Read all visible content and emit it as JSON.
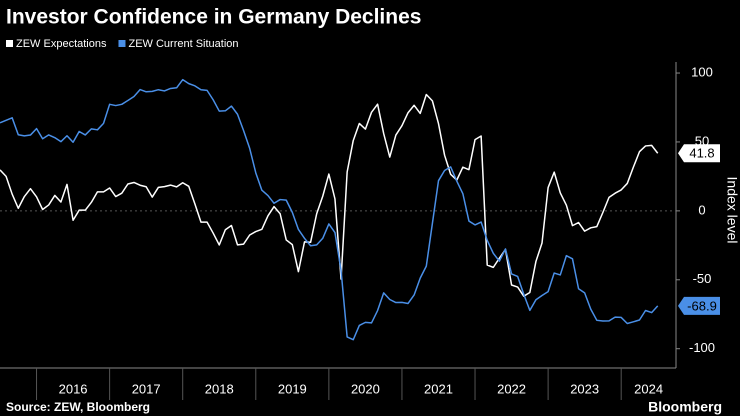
{
  "chart_data": {
    "type": "line",
    "title": "Investor Confidence in Germany Declines",
    "y_label": "Index level",
    "source": "Source: ZEW, Bloomberg",
    "brand": "Bloomberg",
    "x": [
      "2015-07",
      "2015-08",
      "2015-09",
      "2015-10",
      "2015-11",
      "2015-12",
      "2016-01",
      "2016-02",
      "2016-03",
      "2016-04",
      "2016-05",
      "2016-06",
      "2016-07",
      "2016-08",
      "2016-09",
      "2016-10",
      "2016-11",
      "2016-12",
      "2017-01",
      "2017-02",
      "2017-03",
      "2017-04",
      "2017-05",
      "2017-06",
      "2017-07",
      "2017-08",
      "2017-09",
      "2017-10",
      "2017-11",
      "2017-12",
      "2018-01",
      "2018-02",
      "2018-03",
      "2018-04",
      "2018-05",
      "2018-06",
      "2018-07",
      "2018-08",
      "2018-09",
      "2018-10",
      "2018-11",
      "2018-12",
      "2019-01",
      "2019-02",
      "2019-03",
      "2019-04",
      "2019-05",
      "2019-06",
      "2019-07",
      "2019-08",
      "2019-09",
      "2019-10",
      "2019-11",
      "2019-12",
      "2020-01",
      "2020-02",
      "2020-03",
      "2020-04",
      "2020-05",
      "2020-06",
      "2020-07",
      "2020-08",
      "2020-09",
      "2020-10",
      "2020-11",
      "2020-12",
      "2021-01",
      "2021-02",
      "2021-03",
      "2021-04",
      "2021-05",
      "2021-06",
      "2021-07",
      "2021-08",
      "2021-09",
      "2021-10",
      "2021-11",
      "2021-12",
      "2022-01",
      "2022-02",
      "2022-03",
      "2022-04",
      "2022-05",
      "2022-06",
      "2022-07",
      "2022-08",
      "2022-09",
      "2022-10",
      "2022-11",
      "2022-12",
      "2023-01",
      "2023-02",
      "2023-03",
      "2023-04",
      "2023-05",
      "2023-06",
      "2023-07",
      "2023-08",
      "2023-09",
      "2023-10",
      "2023-11",
      "2023-12",
      "2024-01",
      "2024-02",
      "2024-03",
      "2024-04",
      "2024-05",
      "2024-06",
      "2024-07"
    ],
    "series": [
      {
        "name": "ZEW Expectations",
        "color": "#ffffff",
        "values": [
          29.7,
          25.0,
          12.1,
          1.9,
          10.4,
          16.1,
          10.2,
          1.0,
          4.3,
          11.2,
          6.4,
          19.2,
          -6.8,
          0.5,
          0.5,
          6.2,
          13.8,
          13.8,
          16.6,
          10.4,
          12.8,
          19.5,
          20.6,
          18.6,
          17.5,
          10.0,
          17.0,
          17.6,
          18.7,
          17.4,
          20.4,
          17.8,
          5.1,
          -8.2,
          -8.2,
          -16.1,
          -24.7,
          -13.7,
          -10.6,
          -24.7,
          -24.1,
          -17.5,
          -15.0,
          -13.4,
          -3.6,
          3.1,
          -2.1,
          -21.1,
          -24.5,
          -44.1,
          -22.5,
          -22.8,
          -2.1,
          10.7,
          26.7,
          8.7,
          -49.5,
          28.2,
          51.0,
          63.4,
          59.3,
          71.5,
          77.4,
          56.1,
          39.0,
          55.0,
          61.8,
          71.2,
          76.6,
          70.7,
          84.4,
          79.8,
          63.3,
          40.4,
          26.5,
          22.3,
          31.7,
          29.9,
          51.7,
          54.3,
          -39.3,
          -41.0,
          -34.3,
          -28.0,
          -53.8,
          -55.3,
          -61.9,
          -59.2,
          -36.7,
          -23.3,
          16.9,
          28.1,
          13.0,
          4.1,
          -10.7,
          -8.5,
          -14.7,
          -12.3,
          -11.4,
          -1.1,
          9.8,
          12.8,
          15.2,
          19.9,
          31.7,
          42.9,
          47.1,
          47.5,
          41.8
        ]
      },
      {
        "name": "ZEW Current Situation",
        "color": "#4a8fe7",
        "values": [
          63.9,
          65.7,
          67.5,
          55.2,
          54.4,
          55.0,
          59.7,
          52.3,
          55.1,
          53.1,
          50.2,
          54.5,
          49.8,
          57.6,
          55.1,
          59.5,
          58.8,
          63.5,
          77.3,
          76.4,
          77.3,
          80.1,
          83.0,
          88.0,
          86.4,
          86.7,
          87.9,
          87.0,
          88.8,
          89.3,
          95.2,
          92.3,
          90.7,
          87.9,
          87.4,
          80.6,
          72.4,
          72.6,
          76.0,
          70.1,
          58.2,
          45.3,
          27.6,
          15.0,
          11.1,
          5.5,
          8.2,
          7.8,
          -1.1,
          -13.5,
          -19.9,
          -25.3,
          -24.7,
          -19.9,
          -9.5,
          -15.7,
          -43.1,
          -91.5,
          -93.5,
          -83.1,
          -80.9,
          -81.3,
          -72.3,
          -59.5,
          -64.3,
          -66.5,
          -66.4,
          -67.2,
          -61.0,
          -48.8,
          -40.1,
          -9.1,
          21.9,
          29.3,
          31.9,
          21.6,
          12.5,
          -7.4,
          -10.2,
          -8.1,
          -21.4,
          -30.8,
          -36.5,
          -27.6,
          -45.8,
          -47.6,
          -60.5,
          -72.2,
          -64.5,
          -61.4,
          -58.6,
          -45.1,
          -46.5,
          -32.5,
          -34.8,
          -56.5,
          -59.5,
          -71.3,
          -79.4,
          -79.9,
          -79.8,
          -77.1,
          -77.3,
          -81.7,
          -80.5,
          -79.2,
          -72.3,
          -73.8,
          -68.9
        ]
      }
    ],
    "xlim": [
      "2015-07",
      "2024-10"
    ],
    "xticks": [
      "2016",
      "2017",
      "2018",
      "2019",
      "2020",
      "2021",
      "2022",
      "2023",
      "2024"
    ],
    "ylim": [
      -114,
      108
    ],
    "yticks": [
      100,
      50,
      0,
      -50,
      -100
    ],
    "grid": false
  }
}
